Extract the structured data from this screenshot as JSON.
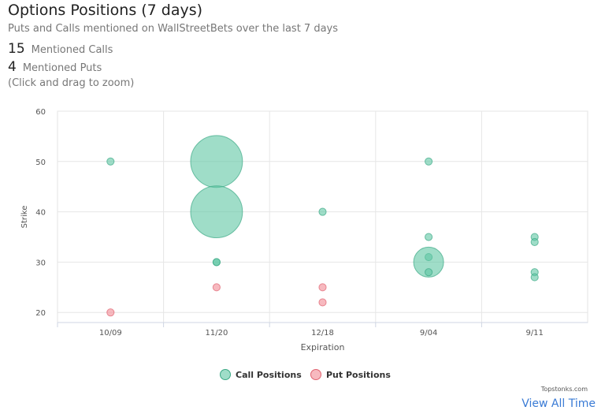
{
  "title": "Options Positions (7 days)",
  "subtitle": "Puts and Calls mentioned on WallStreetBets over the last 7 days",
  "stats": {
    "calls_count": "15",
    "calls_label": "Mentioned Calls",
    "puts_count": "4",
    "puts_label": "Mentioned Puts"
  },
  "zoom_hint": "(Click and drag to zoom)",
  "credits": "Topstonks.com",
  "view_all_link": "View All Time",
  "colors": {
    "call": "#5fc7a4",
    "call_stroke": "#3aa884",
    "put": "#f28b95",
    "put_stroke": "#e06370"
  },
  "chart_data": {
    "type": "scatter",
    "xlabel": "Expiration",
    "ylabel": "Strike",
    "categories": [
      "10/09",
      "11/20",
      "12/18",
      "9/04",
      "9/11"
    ],
    "ylim": [
      18,
      60
    ],
    "yticks": [
      20,
      30,
      40,
      50,
      60
    ],
    "grid": true,
    "legend_position": "bottom-center",
    "series": [
      {
        "name": "Call Positions",
        "points": [
          {
            "x": "10/09",
            "y": 50,
            "size": 1
          },
          {
            "x": "11/20",
            "y": 50,
            "size": 12
          },
          {
            "x": "11/20",
            "y": 40,
            "size": 12
          },
          {
            "x": "11/20",
            "y": 30,
            "size": 1
          },
          {
            "x": "11/20",
            "y": 30,
            "size": 1
          },
          {
            "x": "12/18",
            "y": 40,
            "size": 1
          },
          {
            "x": "9/04",
            "y": 50,
            "size": 1
          },
          {
            "x": "9/04",
            "y": 35,
            "size": 1
          },
          {
            "x": "9/04",
            "y": 31,
            "size": 1
          },
          {
            "x": "9/04",
            "y": 30,
            "size": 4
          },
          {
            "x": "9/04",
            "y": 28,
            "size": 1
          },
          {
            "x": "9/11",
            "y": 35,
            "size": 1
          },
          {
            "x": "9/11",
            "y": 34,
            "size": 1
          },
          {
            "x": "9/11",
            "y": 28,
            "size": 1
          },
          {
            "x": "9/11",
            "y": 27,
            "size": 1
          }
        ]
      },
      {
        "name": "Put Positions",
        "points": [
          {
            "x": "10/09",
            "y": 20,
            "size": 1
          },
          {
            "x": "11/20",
            "y": 25,
            "size": 1
          },
          {
            "x": "12/18",
            "y": 25,
            "size": 1
          },
          {
            "x": "12/18",
            "y": 22,
            "size": 1
          }
        ]
      }
    ]
  }
}
